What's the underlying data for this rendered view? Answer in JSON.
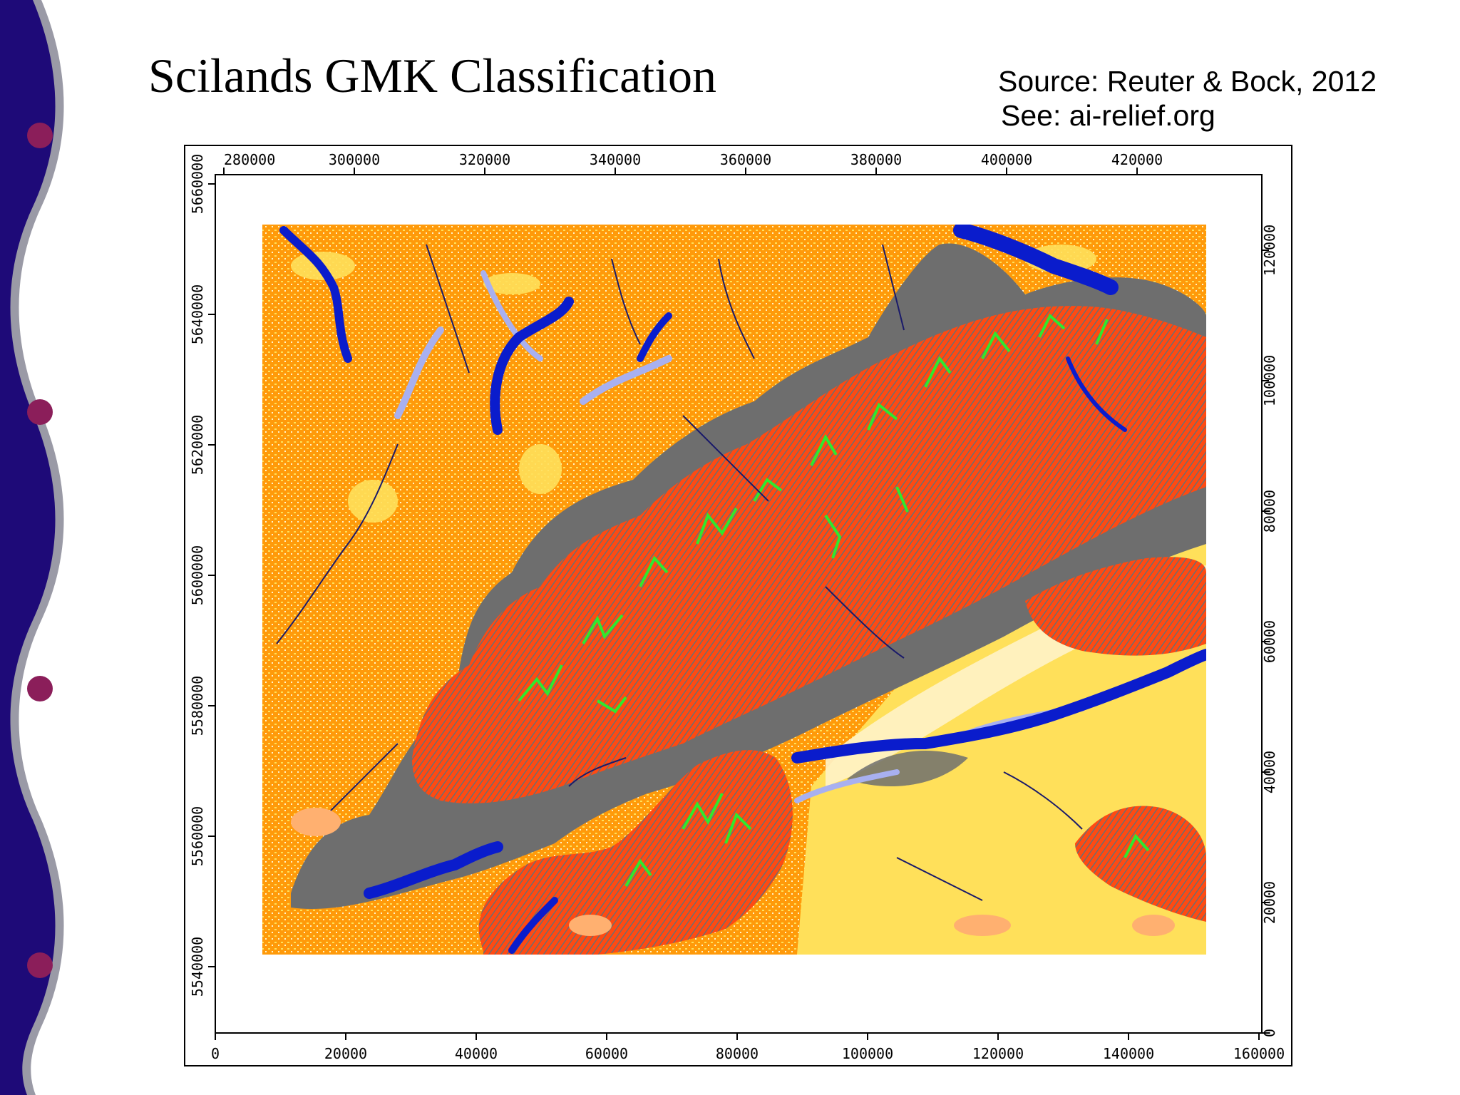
{
  "slide": {
    "title": "Scilands GMK Classification",
    "source": "Source: Reuter & Bock, 2012",
    "see": "See: ai-relief.org"
  },
  "map": {
    "top_axis_labels": [
      "280000",
      "300000",
      "320000",
      "340000",
      "360000",
      "380000",
      "400000",
      "420000"
    ],
    "left_axis_labels": [
      "5660000",
      "5640000",
      "5620000",
      "5600000",
      "5580000",
      "5560000",
      "5540000"
    ],
    "bottom_axis_labels": [
      "0",
      "20000",
      "40000",
      "60000",
      "80000",
      "100000",
      "120000",
      "140000",
      "160000"
    ],
    "right_axis_labels": [
      "0",
      "20000",
      "40000",
      "60000",
      "80000",
      "100000",
      "120000"
    ],
    "class_colors": {
      "uplands": "#ff9a0a",
      "high_slopes": "#ff4a12",
      "ridges_gray": "#6e6e6e",
      "channels_green": "#2fe82f",
      "valleys_blue": "#0a1ccc",
      "valley_light_blue": "#a8b0f0",
      "plain_yellow": "#ffe05a",
      "flat_cream": "#fff3c8",
      "slope_light_orange": "#ffb070"
    }
  },
  "decoration": {
    "bar_color": "#1e0a78",
    "edge_color": "#9a9aa6",
    "bullet_color": "#8b1e5a"
  }
}
